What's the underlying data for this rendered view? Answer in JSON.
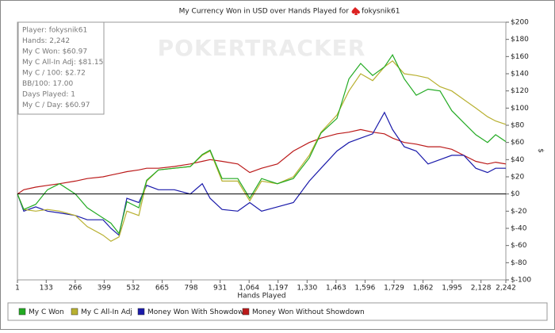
{
  "chart_data": {
    "type": "line",
    "title": "My Currency Won in USD over Hands Played for",
    "title_player": "fokysnik61",
    "watermark": "POKERTRACKER",
    "x_label": "Hands Played",
    "y_label": "$",
    "info": [
      "Player: fokysnik61",
      "Hands: 2,242",
      "My C Won: $60.97",
      "My C All-In Adj: $81.15",
      "My C / 100: $2.72",
      "BB/100: 17.00",
      "Days Played: 1",
      "My C / Day: $60.97"
    ],
    "x": [
      1,
      30,
      85,
      139,
      194,
      267,
      321,
      394,
      430,
      467,
      503,
      558,
      594,
      648,
      721,
      794,
      849,
      885,
      940,
      1012,
      1067,
      1121,
      1194,
      1267,
      1340,
      1394,
      1467,
      1522,
      1576,
      1631,
      1685,
      1722,
      1776,
      1831,
      1885,
      1940,
      1994,
      2049,
      2104,
      2158,
      2195,
      2242
    ],
    "series": [
      {
        "name": "My C Won",
        "color": "#22aa22",
        "values": [
          0,
          -18,
          -12,
          5,
          12,
          0,
          -16,
          -28,
          -34,
          -46,
          -9,
          -16,
          16,
          28,
          30,
          32,
          46,
          51,
          18,
          18,
          -5,
          18,
          12,
          18,
          42,
          71,
          88,
          134,
          152,
          138,
          148,
          162,
          134,
          115,
          122,
          120,
          97,
          83,
          69,
          60,
          69,
          61
        ]
      },
      {
        "name": "My C All-In Adj",
        "color": "#b8b030",
        "values": [
          0,
          -18,
          -20,
          -18,
          -20,
          -25,
          -38,
          -48,
          -55,
          -50,
          -20,
          -25,
          15,
          28,
          30,
          32,
          45,
          50,
          15,
          15,
          -8,
          15,
          12,
          20,
          45,
          72,
          92,
          120,
          140,
          132,
          148,
          155,
          140,
          138,
          135,
          125,
          120,
          110,
          100,
          90,
          85,
          81
        ]
      },
      {
        "name": "Money Won With Showdown",
        "color": "#1a1aaa",
        "values": [
          0,
          -20,
          -15,
          -20,
          -22,
          -25,
          -30,
          -30,
          -40,
          -48,
          -5,
          -10,
          10,
          5,
          5,
          0,
          12,
          -5,
          -18,
          -20,
          -10,
          -20,
          -15,
          -10,
          15,
          30,
          50,
          60,
          65,
          70,
          95,
          75,
          55,
          50,
          35,
          40,
          45,
          45,
          30,
          25,
          30,
          30
        ]
      },
      {
        "name": "Money Won Without Showdown",
        "color": "#bb1a1a",
        "values": [
          0,
          5,
          8,
          10,
          12,
          15,
          18,
          20,
          22,
          24,
          26,
          28,
          30,
          30,
          32,
          35,
          38,
          40,
          38,
          35,
          25,
          30,
          35,
          50,
          60,
          65,
          70,
          72,
          75,
          72,
          70,
          65,
          60,
          58,
          55,
          55,
          52,
          45,
          38,
          35,
          37,
          35
        ]
      }
    ],
    "xlim": [
      1,
      2242
    ],
    "xticks": [
      1,
      133,
      266,
      399,
      532,
      665,
      798,
      931,
      {
        "value": 1064,
        "label": "1,064"
      },
      {
        "value": 1197,
        "label": "1,197"
      },
      {
        "value": 1330,
        "label": "1,330"
      },
      {
        "value": 1463,
        "label": "1,463"
      },
      {
        "value": 1596,
        "label": "1,596"
      },
      {
        "value": 1729,
        "label": "1,729"
      },
      {
        "value": 1862,
        "label": "1,862"
      },
      {
        "value": 1995,
        "label": "1,995"
      },
      {
        "value": 2128,
        "label": "2,128"
      },
      {
        "value": 2242,
        "label": "2,242"
      }
    ],
    "ylim": [
      -100,
      200
    ],
    "yticks": [
      {
        "value": -100,
        "label": "$-100"
      },
      {
        "value": -80,
        "label": "$-80"
      },
      {
        "value": -60,
        "label": "$-60"
      },
      {
        "value": -40,
        "label": "$-40"
      },
      {
        "value": -20,
        "label": "$-20"
      },
      {
        "value": 0,
        "label": "$0"
      },
      {
        "value": 20,
        "label": "$20"
      },
      {
        "value": 40,
        "label": "$40"
      },
      {
        "value": 60,
        "label": "$60"
      },
      {
        "value": 80,
        "label": "$80"
      },
      {
        "value": 100,
        "label": "$100"
      },
      {
        "value": 120,
        "label": "$120"
      },
      {
        "value": 140,
        "label": "$140"
      },
      {
        "value": 160,
        "label": "$160"
      },
      {
        "value": 180,
        "label": "$180"
      },
      {
        "value": 200,
        "label": "$200"
      }
    ]
  }
}
